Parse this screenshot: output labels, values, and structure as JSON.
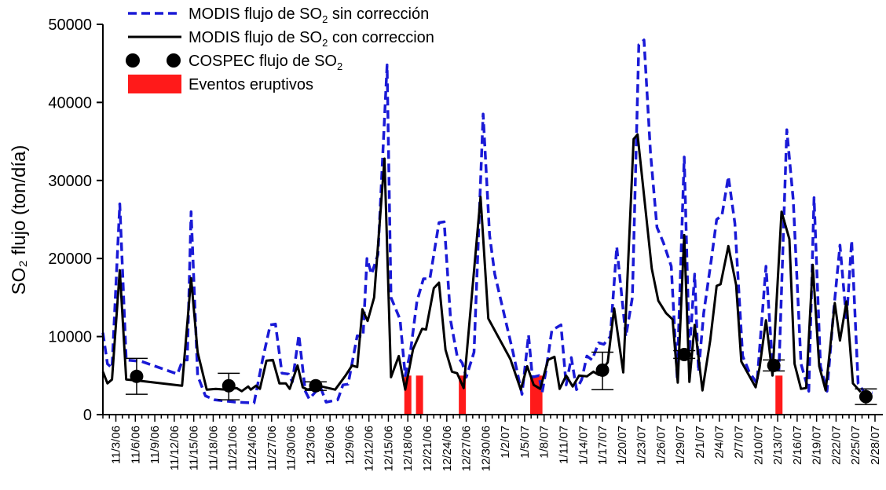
{
  "chart_data": {
    "type": "line",
    "ylabel": "SO₂ flujo  (ton/día)",
    "ylim": [
      0,
      50000
    ],
    "yticks": [
      0,
      10000,
      20000,
      30000,
      40000,
      50000
    ],
    "xlim": [
      0,
      119
    ],
    "xticks": [
      {
        "x": 2,
        "label": "11/3/06"
      },
      {
        "x": 5,
        "label": "11/6/06"
      },
      {
        "x": 8,
        "label": "11/9/06"
      },
      {
        "x": 11,
        "label": "11/12/06"
      },
      {
        "x": 14,
        "label": "11/15/06"
      },
      {
        "x": 17,
        "label": "11/18/06"
      },
      {
        "x": 20,
        "label": "11/21/06"
      },
      {
        "x": 23,
        "label": "11/24/06"
      },
      {
        "x": 26,
        "label": "11/27/06"
      },
      {
        "x": 29,
        "label": "11/30/06"
      },
      {
        "x": 32,
        "label": "12/3/06"
      },
      {
        "x": 35,
        "label": "12/6/06"
      },
      {
        "x": 38,
        "label": "12/9/06"
      },
      {
        "x": 41,
        "label": "12/12/06"
      },
      {
        "x": 44,
        "label": "12/15/06"
      },
      {
        "x": 47,
        "label": "12/18/06"
      },
      {
        "x": 50,
        "label": "12/21/06"
      },
      {
        "x": 53,
        "label": "12/24/06"
      },
      {
        "x": 56,
        "label": "12/27/06"
      },
      {
        "x": 59,
        "label": "12/30/06"
      },
      {
        "x": 62,
        "label": "1/2/07"
      },
      {
        "x": 65,
        "label": "1/5/07"
      },
      {
        "x": 68,
        "label": "1/8/07"
      },
      {
        "x": 71,
        "label": "1/11/07"
      },
      {
        "x": 74,
        "label": "1/14/07"
      },
      {
        "x": 77,
        "label": "1/17/07"
      },
      {
        "x": 80,
        "label": "1/20/07"
      },
      {
        "x": 83,
        "label": "1/23/07"
      },
      {
        "x": 86,
        "label": "1/26/07"
      },
      {
        "x": 89,
        "label": "1/29/07"
      },
      {
        "x": 92,
        "label": "2/1/07"
      },
      {
        "x": 95,
        "label": "2/4/07"
      },
      {
        "x": 98,
        "label": "2/7/07"
      },
      {
        "x": 101,
        "label": "2/10/07"
      },
      {
        "x": 104,
        "label": "2/13/07"
      },
      {
        "x": 107,
        "label": "2/16/07"
      },
      {
        "x": 110,
        "label": "2/19/07"
      },
      {
        "x": 113,
        "label": "2/22/07"
      },
      {
        "x": 116,
        "label": "2/25/07"
      },
      {
        "x": 119,
        "label": "2/28/07"
      }
    ],
    "legend": {
      "placement": "top-left",
      "entries": [
        {
          "label": "MODIS flujo de SO",
          "sub": "2",
          "suffix": " sin corrección",
          "style": "dashed",
          "color": "#1a1ad6"
        },
        {
          "label": "MODIS flujo de SO",
          "sub": "2",
          "suffix": " con correccion",
          "style": "solid",
          "color": "#000000"
        },
        {
          "label": "COSPEC flujo de SO",
          "sub": "2",
          "suffix": "",
          "style": "marker",
          "color": "#000000"
        },
        {
          "label": "Eventos eruptivos",
          "sub": "",
          "suffix": "",
          "style": "bar",
          "color": "#ff1a1a"
        }
      ]
    },
    "series": [
      {
        "name": "MODIS flujo de SO2 sin corrección",
        "style": "dashed",
        "color": "#1a1ad6",
        "points": [
          [
            0,
            10500
          ],
          [
            0.7,
            6500
          ],
          [
            1.4,
            6000
          ],
          [
            2.6,
            27000
          ],
          [
            3.6,
            7000
          ],
          [
            6,
            6800
          ],
          [
            11.5,
            5200
          ],
          [
            12.3,
            7000
          ],
          [
            13,
            7000
          ],
          [
            13.6,
            26000
          ],
          [
            14.6,
            5000
          ],
          [
            15.8,
            2400
          ],
          [
            17.2,
            1900
          ],
          [
            20.5,
            1600
          ],
          [
            23.3,
            1500
          ],
          [
            24.6,
            7000
          ],
          [
            25.8,
            11500
          ],
          [
            26.6,
            11600
          ],
          [
            27.6,
            5300
          ],
          [
            28.6,
            5200
          ],
          [
            29.2,
            4200
          ],
          [
            30.2,
            10200
          ],
          [
            31.2,
            3000
          ],
          [
            31.8,
            2000
          ],
          [
            33.5,
            3600
          ],
          [
            34.4,
            1600
          ],
          [
            36.2,
            1900
          ],
          [
            37,
            3800
          ],
          [
            37.8,
            3900
          ],
          [
            39.2,
            10100
          ],
          [
            40.1,
            10000
          ],
          [
            40.7,
            20000
          ],
          [
            41.4,
            18000
          ],
          [
            42.4,
            20500
          ],
          [
            43.8,
            44800
          ],
          [
            44.4,
            15000
          ],
          [
            45.8,
            12200
          ],
          [
            46.6,
            5000
          ],
          [
            47.4,
            8000
          ],
          [
            48.4,
            14500
          ],
          [
            49.4,
            17400
          ],
          [
            50.4,
            17400
          ],
          [
            51.8,
            24600
          ],
          [
            52.6,
            24700
          ],
          [
            53.6,
            12000
          ],
          [
            54.6,
            7500
          ],
          [
            55.4,
            6600
          ],
          [
            56,
            4800
          ],
          [
            57.2,
            8000
          ],
          [
            58.6,
            38500
          ],
          [
            59.6,
            23000
          ],
          [
            60.4,
            18000
          ],
          [
            63.2,
            8000
          ],
          [
            64.6,
            2600
          ],
          [
            65.6,
            10200
          ],
          [
            66.2,
            4800
          ],
          [
            67.2,
            5000
          ],
          [
            67.7,
            2800
          ],
          [
            68.2,
            5200
          ],
          [
            69.2,
            10800
          ],
          [
            70.6,
            11500
          ],
          [
            71.4,
            3800
          ],
          [
            72.2,
            7300
          ],
          [
            73,
            3200
          ],
          [
            73.8,
            4500
          ],
          [
            74.6,
            7500
          ],
          [
            75.4,
            7000
          ],
          [
            76.4,
            9200
          ],
          [
            77.2,
            9000
          ],
          [
            78.2,
            10000
          ],
          [
            79.2,
            21500
          ],
          [
            80.6,
            10000
          ],
          [
            81.6,
            15000
          ],
          [
            82.6,
            47400
          ],
          [
            83.4,
            48000
          ],
          [
            84.4,
            33500
          ],
          [
            85.4,
            24000
          ],
          [
            86.4,
            22000
          ],
          [
            87.6,
            19000
          ],
          [
            88.5,
            4800
          ],
          [
            89.6,
            33000
          ],
          [
            90.4,
            8000
          ],
          [
            91.2,
            18000
          ],
          [
            91.8,
            5500
          ],
          [
            92.6,
            13000
          ],
          [
            93.8,
            20000
          ],
          [
            94.6,
            25000
          ],
          [
            95.4,
            25500
          ],
          [
            96.4,
            30500
          ],
          [
            97.4,
            24500
          ],
          [
            98.6,
            7500
          ],
          [
            99.6,
            5500
          ],
          [
            100.8,
            4000
          ],
          [
            102.2,
            19000
          ],
          [
            103.2,
            6500
          ],
          [
            104.2,
            5800
          ],
          [
            105.4,
            36500
          ],
          [
            106.4,
            27500
          ],
          [
            107.6,
            6500
          ],
          [
            108.8,
            3000
          ],
          [
            109.6,
            27800
          ],
          [
            110.6,
            6200
          ],
          [
            111.6,
            3000
          ],
          [
            112.6,
            13000
          ],
          [
            113.6,
            21700
          ],
          [
            114.6,
            12000
          ],
          [
            115.4,
            22300
          ],
          [
            116.4,
            4000
          ],
          [
            117.4,
            2800
          ],
          [
            118.6,
            2800
          ]
        ]
      },
      {
        "name": "MODIS flujo de SO2 con correccion",
        "style": "solid",
        "color": "#000000",
        "points": [
          [
            0,
            5500
          ],
          [
            0.7,
            4000
          ],
          [
            1.4,
            4500
          ],
          [
            2.6,
            18500
          ],
          [
            3.6,
            4500
          ],
          [
            6,
            4300
          ],
          [
            12.2,
            3700
          ],
          [
            13.6,
            17500
          ],
          [
            14.6,
            8000
          ],
          [
            16,
            3200
          ],
          [
            17.4,
            3300
          ],
          [
            19,
            3200
          ],
          [
            20.6,
            3400
          ],
          [
            21.4,
            3000
          ],
          [
            22.4,
            3600
          ],
          [
            22.8,
            3200
          ],
          [
            23.6,
            3700
          ],
          [
            24.2,
            3300
          ],
          [
            25.2,
            6900
          ],
          [
            26.2,
            7000
          ],
          [
            27.2,
            4000
          ],
          [
            28.2,
            4000
          ],
          [
            28.8,
            3300
          ],
          [
            30,
            6300
          ],
          [
            30.8,
            3500
          ],
          [
            31.6,
            3200
          ],
          [
            33.2,
            3700
          ],
          [
            35.8,
            3200
          ],
          [
            37.4,
            5000
          ],
          [
            38.4,
            6300
          ],
          [
            39.2,
            6100
          ],
          [
            40,
            13500
          ],
          [
            40.8,
            12000
          ],
          [
            41.8,
            15000
          ],
          [
            43.4,
            32800
          ],
          [
            44.4,
            4800
          ],
          [
            45.6,
            7500
          ],
          [
            46.6,
            3200
          ],
          [
            47.8,
            8400
          ],
          [
            49.2,
            11000
          ],
          [
            49.8,
            10900
          ],
          [
            51,
            16200
          ],
          [
            51.8,
            16900
          ],
          [
            52.8,
            8300
          ],
          [
            53.8,
            5500
          ],
          [
            54.6,
            5300
          ],
          [
            55.6,
            3400
          ],
          [
            58.2,
            27900
          ],
          [
            59.4,
            12300
          ],
          [
            62.8,
            7100
          ],
          [
            64.4,
            3200
          ],
          [
            65.4,
            6200
          ],
          [
            66.4,
            3800
          ],
          [
            67.4,
            3300
          ],
          [
            68.6,
            7000
          ],
          [
            69.6,
            7400
          ],
          [
            70.4,
            3300
          ],
          [
            71.4,
            5000
          ],
          [
            72.4,
            3600
          ],
          [
            73.4,
            5000
          ],
          [
            74.6,
            4900
          ],
          [
            75.6,
            5500
          ],
          [
            76.4,
            5100
          ],
          [
            77.8,
            6700
          ],
          [
            78.8,
            13600
          ],
          [
            80.2,
            5400
          ],
          [
            81.8,
            35300
          ],
          [
            82.4,
            35900
          ],
          [
            83.6,
            26500
          ],
          [
            84.6,
            18700
          ],
          [
            85.6,
            14600
          ],
          [
            86.8,
            13000
          ],
          [
            87.8,
            12200
          ],
          [
            88.6,
            4100
          ],
          [
            89.6,
            23000
          ],
          [
            90.4,
            4200
          ],
          [
            91.2,
            11500
          ],
          [
            92.4,
            3100
          ],
          [
            93.6,
            9500
          ],
          [
            94.6,
            16500
          ],
          [
            95.2,
            16700
          ],
          [
            96.4,
            21600
          ],
          [
            97.6,
            16600
          ],
          [
            98.4,
            6800
          ],
          [
            100.6,
            3500
          ],
          [
            101.2,
            6000
          ],
          [
            102.2,
            12100
          ],
          [
            103.2,
            5000
          ],
          [
            104.6,
            26000
          ],
          [
            105.8,
            22500
          ],
          [
            106.6,
            6500
          ],
          [
            107.6,
            3300
          ],
          [
            108.4,
            3400
          ],
          [
            109.4,
            19200
          ],
          [
            110.4,
            6200
          ],
          [
            111.4,
            3100
          ],
          [
            112.8,
            14300
          ],
          [
            113.6,
            9500
          ],
          [
            114.6,
            14500
          ],
          [
            115.6,
            4000
          ],
          [
            116.8,
            2900
          ]
        ]
      }
    ],
    "cospec": [
      {
        "x": 5.2,
        "y": 4900,
        "lo": 2600,
        "hi": 7200
      },
      {
        "x": 19.4,
        "y": 3700,
        "lo": 1900,
        "hi": 5300
      },
      {
        "x": 32.8,
        "y": 3700,
        "lo": 3100,
        "hi": 4200
      },
      {
        "x": 77,
        "y": 5700,
        "lo": 3200,
        "hi": 8000
      },
      {
        "x": 89.6,
        "y": 7700,
        "lo": 7200,
        "hi": 8200
      },
      {
        "x": 103.4,
        "y": 6300,
        "lo": 5600,
        "hi": 7000
      },
      {
        "x": 117.6,
        "y": 2300,
        "lo": 1300,
        "hi": 3300
      }
    ],
    "eruptions": [
      {
        "x": 47.0,
        "height": 5000
      },
      {
        "x": 48.8,
        "height": 5000
      },
      {
        "x": 55.4,
        "height": 5000
      },
      {
        "x": 66.4,
        "height": 5000
      },
      {
        "x": 67.2,
        "height": 5000
      },
      {
        "x": 104.2,
        "height": 5000
      }
    ],
    "grid": false
  }
}
